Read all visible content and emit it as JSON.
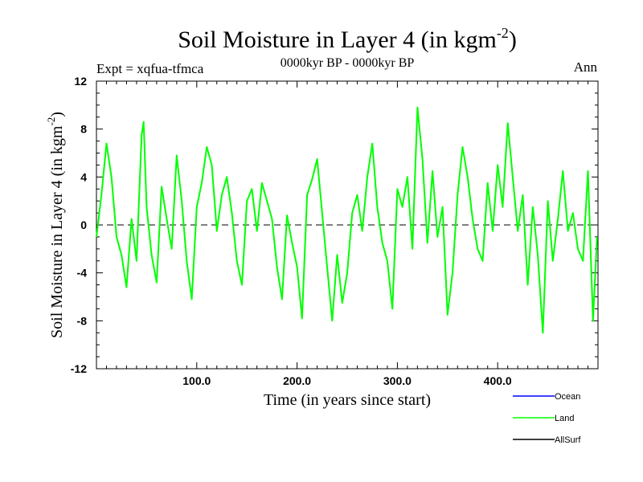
{
  "chart_data": {
    "type": "line",
    "title": "Soil Moisture in Layer 4 (in kgm",
    "title_sup": "-2",
    "title_close": ")",
    "subtitle": "0000kyr BP - 0000kyr BP",
    "expt_label": "Expt = xqfua-tfmca",
    "season_label": "Ann",
    "xlabel": "Time (in years since start)",
    "ylabel": "Soil Moisture in Layer 4 (in kgm",
    "ylabel_sup": "-2",
    "ylabel_close": ")",
    "xlim": [
      0,
      500
    ],
    "ylim": [
      -12,
      12
    ],
    "x_ticks": [
      {
        "value": 100,
        "label": "100.0"
      },
      {
        "value": 200,
        "label": "200.0"
      },
      {
        "value": 300,
        "label": "300.0"
      },
      {
        "value": 400,
        "label": "400.0"
      }
    ],
    "y_ticks": [
      {
        "value": 12,
        "label": "12"
      },
      {
        "value": 8,
        "label": "8"
      },
      {
        "value": 4,
        "label": "4"
      },
      {
        "value": 0,
        "label": "0"
      },
      {
        "value": -4,
        "label": "-4"
      },
      {
        "value": -8,
        "label": "-8"
      },
      {
        "value": -12,
        "label": "-12"
      }
    ],
    "zero_line": true,
    "legend": [
      {
        "name": "Ocean",
        "color": "#0000ff"
      },
      {
        "name": "Land",
        "color": "#00ff00"
      },
      {
        "name": "AllSurf",
        "color": "#000000"
      }
    ],
    "series": [
      {
        "name": "Land",
        "color": "#00ff00",
        "x": [
          0,
          5,
          10,
          15,
          20,
          25,
          30,
          35,
          40,
          45,
          47,
          50,
          55,
          60,
          65,
          70,
          75,
          80,
          85,
          90,
          95,
          100,
          105,
          110,
          115,
          120,
          125,
          130,
          135,
          140,
          145,
          150,
          155,
          160,
          165,
          170,
          175,
          180,
          185,
          190,
          195,
          200,
          205,
          210,
          215,
          220,
          225,
          230,
          235,
          240,
          245,
          250,
          255,
          260,
          265,
          270,
          275,
          280,
          285,
          290,
          295,
          300,
          305,
          310,
          315,
          320,
          325,
          330,
          335,
          340,
          345,
          350,
          355,
          360,
          365,
          370,
          375,
          380,
          385,
          390,
          395,
          400,
          405,
          410,
          415,
          420,
          425,
          430,
          435,
          440,
          445,
          450,
          455,
          460,
          465,
          470,
          475,
          480,
          485,
          490,
          495,
          499
        ],
        "values": [
          -1,
          2.5,
          6.8,
          4,
          -1,
          -2.5,
          -5.2,
          0.5,
          -3,
          7.5,
          8.6,
          1.5,
          -2.5,
          -4.8,
          3.2,
          0.5,
          -2,
          5.8,
          2,
          -3,
          -6.2,
          1.5,
          3.5,
          6.5,
          5,
          -0.5,
          2.5,
          4,
          1,
          -3,
          -5,
          2,
          3,
          -0.5,
          3.5,
          2,
          0.5,
          -3.5,
          -6.2,
          0.8,
          -1.5,
          -3.5,
          -7.8,
          2.5,
          3.8,
          5.5,
          1,
          -3.5,
          -8,
          -2.5,
          -6.5,
          -4,
          1,
          2.5,
          -0.5,
          4,
          6.8,
          1.5,
          -1.5,
          -3,
          -7,
          3,
          1.5,
          4,
          -2,
          9.8,
          5.5,
          -1.5,
          4.5,
          -1,
          1.5,
          -7.5,
          -4,
          2.5,
          6.5,
          4,
          0.5,
          -2,
          -3,
          3.5,
          -0.5,
          5,
          1.5,
          8.5,
          4,
          -0.5,
          2.5,
          -5,
          1.5,
          -2.5,
          -9,
          2,
          -3,
          0.5,
          4.5,
          -0.5,
          1,
          -2,
          -3,
          4.5,
          -8,
          -1
        ]
      }
    ]
  }
}
